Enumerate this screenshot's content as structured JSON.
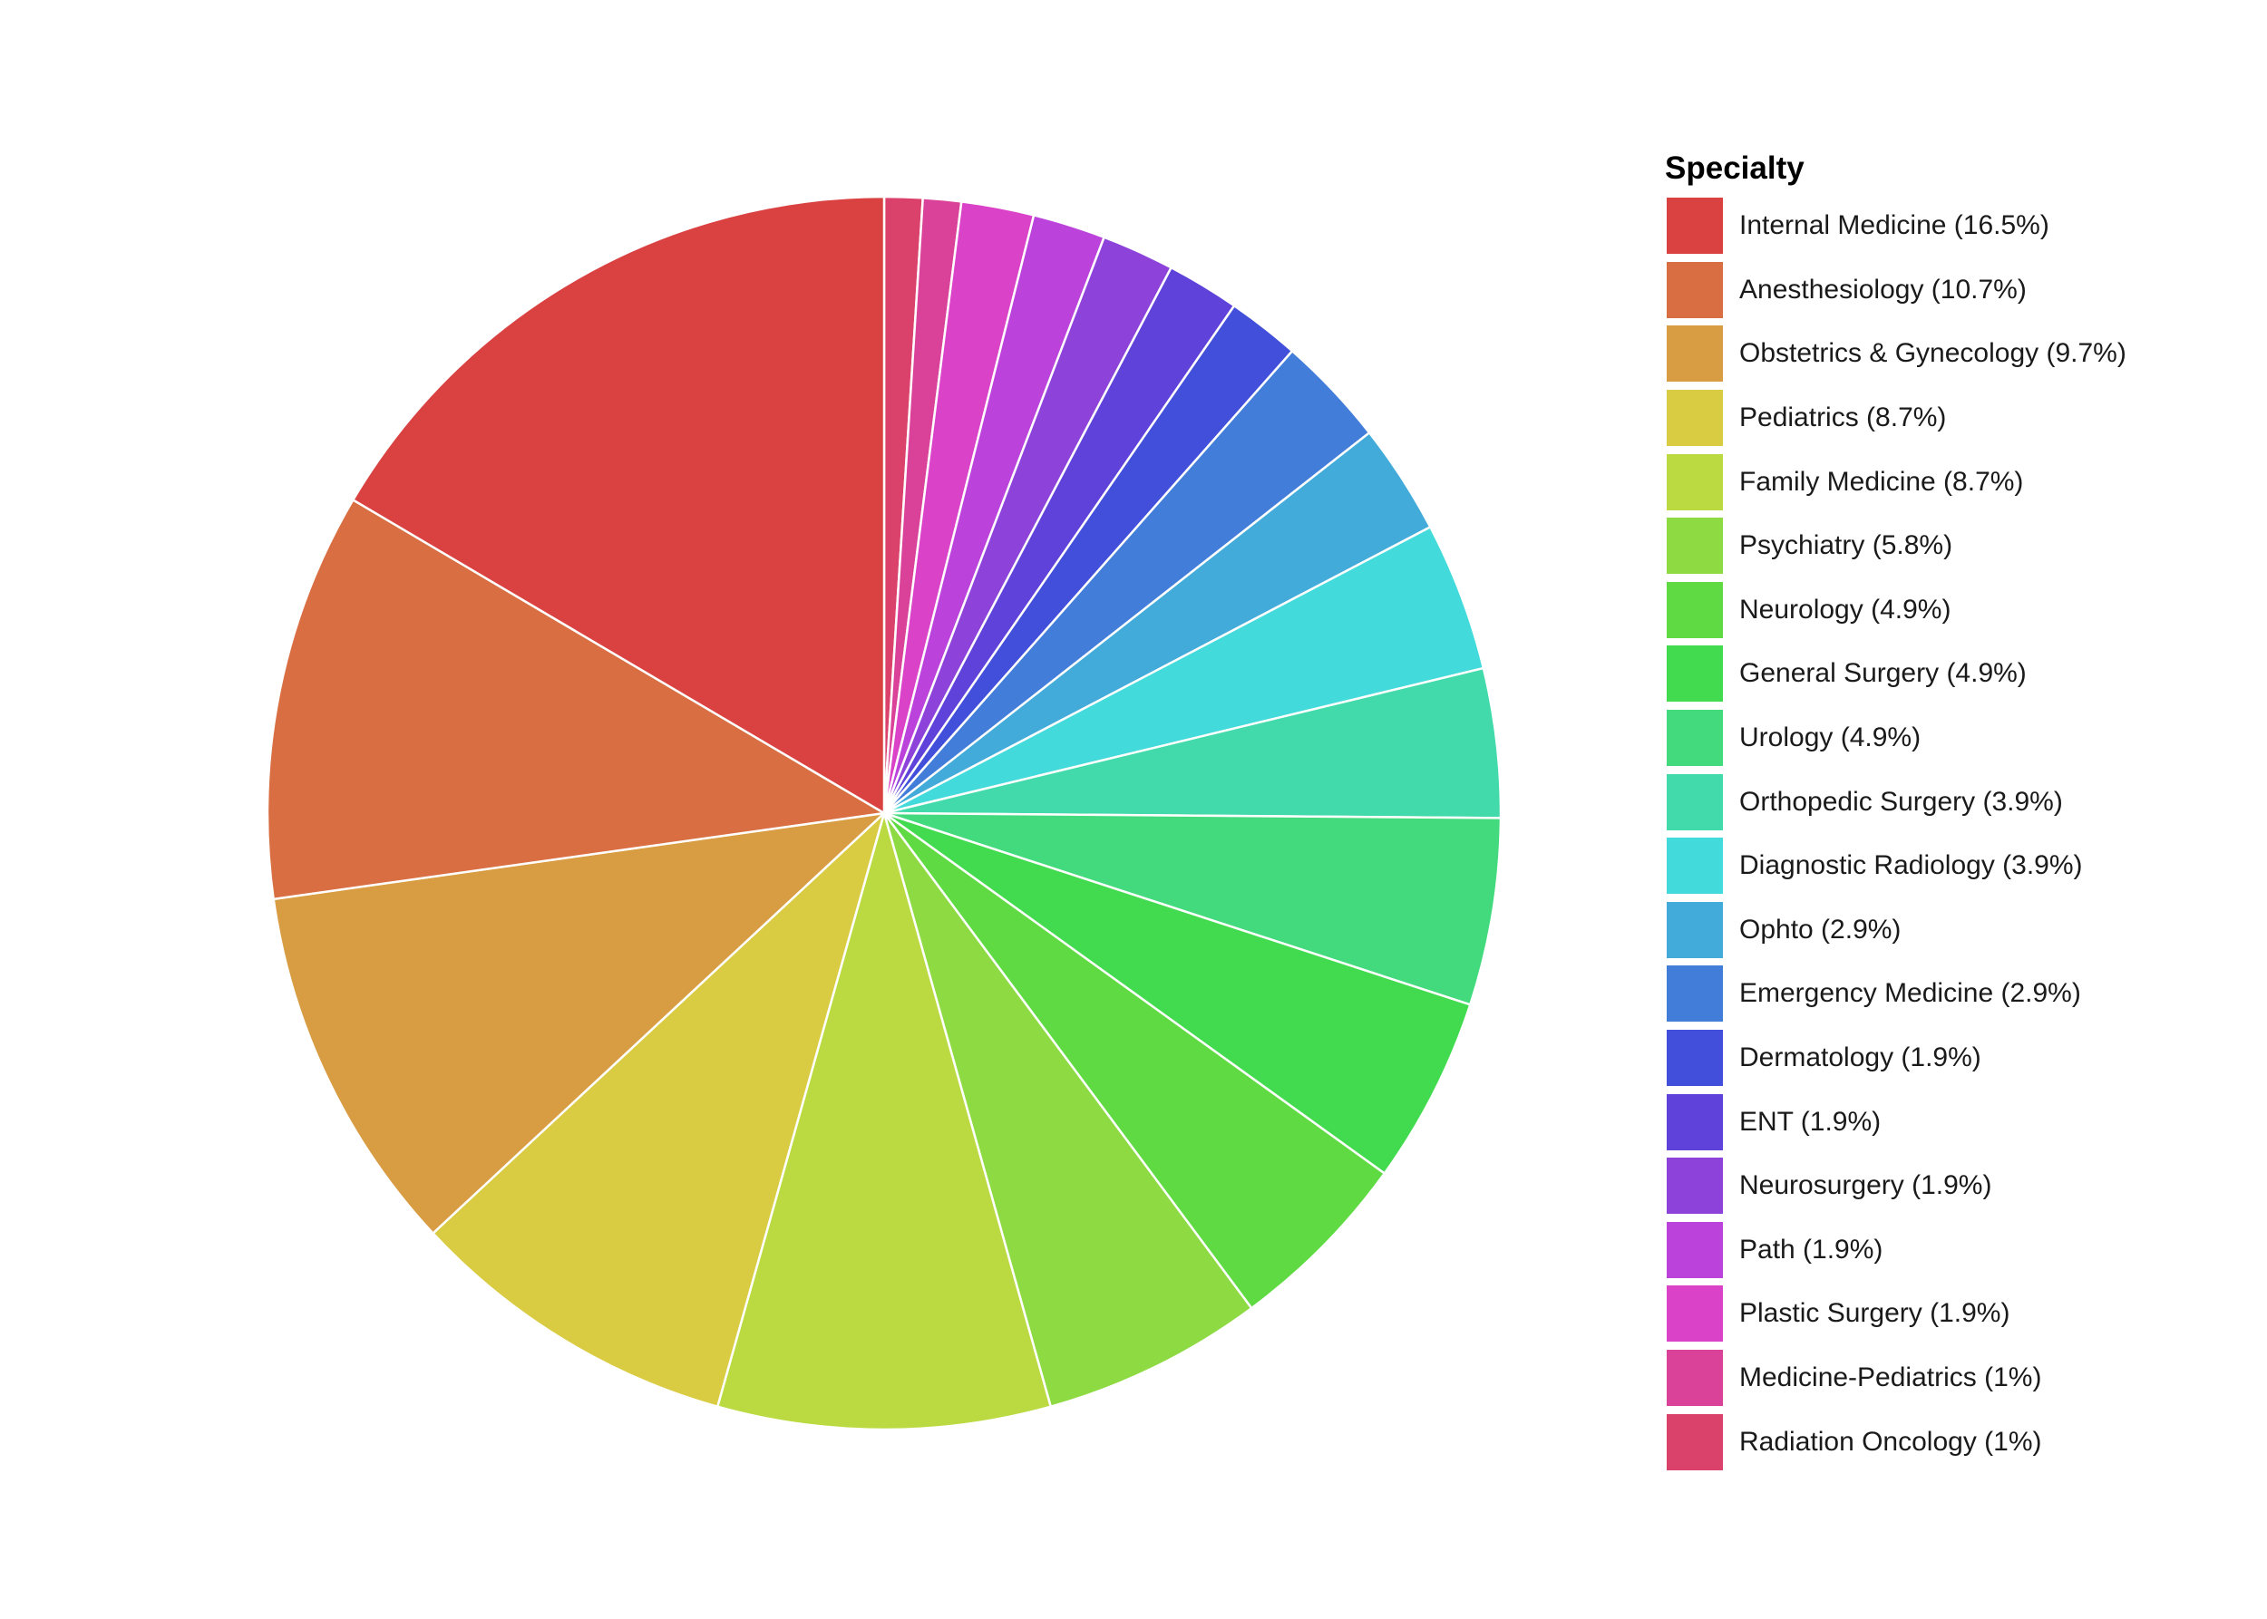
{
  "chart_data": {
    "type": "pie",
    "legend_title": "Specialty",
    "legend_position": "right",
    "start_angle": "12 o'clock",
    "direction": "clockwise from top, reversed order (last category first)",
    "slices": [
      {
        "label": "Internal Medicine (16.5%)",
        "category": "Internal Medicine",
        "value": 16.5,
        "color": "#DA4242"
      },
      {
        "label": "Anesthesiology (10.7%)",
        "category": "Anesthesiology",
        "value": 10.7,
        "color": "#D86E42"
      },
      {
        "label": "Obstetrics & Gynecology (9.7%)",
        "category": "Obstetrics & Gynecology",
        "value": 9.7,
        "color": "#D89C42"
      },
      {
        "label": "Pediatrics (8.7%)",
        "category": "Pediatrics",
        "value": 8.7,
        "color": "#D9CB42"
      },
      {
        "label": "Family Medicine (8.7%)",
        "category": "Family Medicine",
        "value": 8.7,
        "color": "#BBDA42"
      },
      {
        "label": "Psychiatry (5.8%)",
        "category": "Psychiatry",
        "value": 5.8,
        "color": "#8DDA42"
      },
      {
        "label": "Neurology (4.9%)",
        "category": "Neurology",
        "value": 4.9,
        "color": "#5FDA42"
      },
      {
        "label": "General Surgery (4.9%)",
        "category": "General Surgery",
        "value": 4.9,
        "color": "#42DA4F"
      },
      {
        "label": "Urology (4.9%)",
        "category": "Urology",
        "value": 4.9,
        "color": "#42DA7D"
      },
      {
        "label": "Orthopedic Surgery (3.9%)",
        "category": "Orthopedic Surgery",
        "value": 3.9,
        "color": "#42DAAB"
      },
      {
        "label": "Diagnostic Radiology (3.9%)",
        "category": "Diagnostic Radiology",
        "value": 3.9,
        "color": "#42DADA"
      },
      {
        "label": "Ophto (2.9%)",
        "category": "Ophto",
        "value": 2.9,
        "color": "#42ABDA"
      },
      {
        "label": "Emergency Medicine (2.9%)",
        "category": "Emergency Medicine",
        "value": 2.9,
        "color": "#427DDA"
      },
      {
        "label": "Dermatology (1.9%)",
        "category": "Dermatology",
        "value": 1.9,
        "color": "#424FDA"
      },
      {
        "label": "ENT (1.9%)",
        "category": "ENT",
        "value": 1.9,
        "color": "#5F42DA"
      },
      {
        "label": "Neurosurgery (1.9%)",
        "category": "Neurosurgery",
        "value": 1.9,
        "color": "#8D42DA"
      },
      {
        "label": "Path (1.9%)",
        "category": "Path",
        "value": 1.9,
        "color": "#BB42DA"
      },
      {
        "label": "Plastic Surgery (1.9%)",
        "category": "Plastic Surgery",
        "value": 1.9,
        "color": "#DA42C8"
      },
      {
        "label": "Medicine-Pediatrics (1%)",
        "category": "Medicine-Pediatrics",
        "value": 1.0,
        "color": "#DA429A"
      },
      {
        "label": "Radiation Oncology (1%)",
        "category": "Radiation Oncology",
        "value": 1.0,
        "color": "#DA426C"
      }
    ]
  }
}
